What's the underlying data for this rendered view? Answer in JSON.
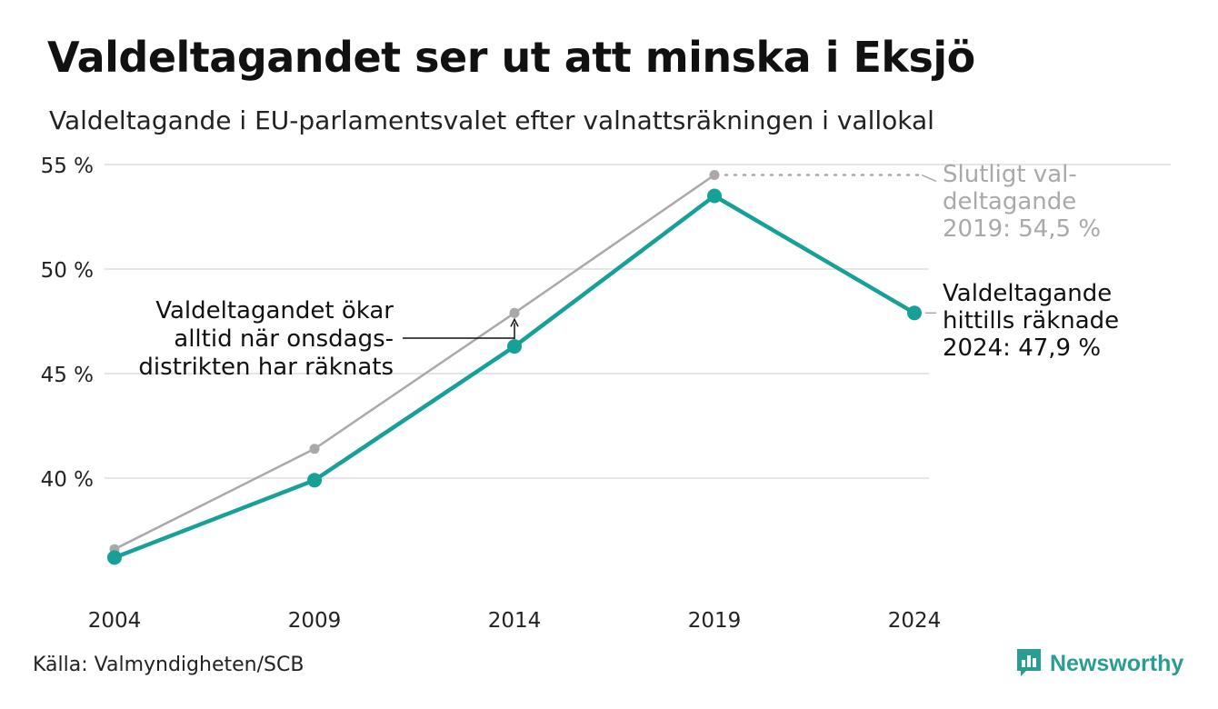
{
  "title": "Valdeltagandet ser ut att minska i Eksjö",
  "subtitle": "Valdeltagande i EU-parlamentsvalet efter valnattsräkningen i vallokal",
  "source": "Källa: Valmyndigheten/SCB",
  "brand": {
    "name": "Newsworthy",
    "icon": "bar-chart-speech-bubble-icon",
    "color": "#2a9d93"
  },
  "colors": {
    "valnatt": "#16a098",
    "slutligt": "#a9a9a9",
    "grid": "#e6e6e6"
  },
  "chart_data": {
    "type": "line",
    "x": [
      "2004",
      "2009",
      "2014",
      "2019",
      "2024"
    ],
    "ylim": [
      34,
      55
    ],
    "yticks": [
      {
        "value": 40,
        "label": "40 %"
      },
      {
        "value": 45,
        "label": "45 %"
      },
      {
        "value": 50,
        "label": "50 %"
      },
      {
        "value": 55,
        "label": "55 %"
      }
    ],
    "grid": true,
    "series": [
      {
        "key": "slutligt",
        "values": [
          36.6,
          41.4,
          47.9,
          54.5,
          null
        ]
      },
      {
        "key": "valnatt",
        "values": [
          36.2,
          39.9,
          46.3,
          53.5,
          47.9
        ]
      }
    ],
    "annotations": {
      "slutligt_label": [
        "Slutligt val-",
        "deltagande",
        "2019: 54,5 %"
      ],
      "valnatt_label": [
        "Valdeltagande",
        "hittills räknade",
        "2024: 47,9 %"
      ],
      "increase_note": [
        "Valdeltagandet ökar",
        "alltid när onsdags-",
        "distrikten har räknats"
      ]
    }
  }
}
